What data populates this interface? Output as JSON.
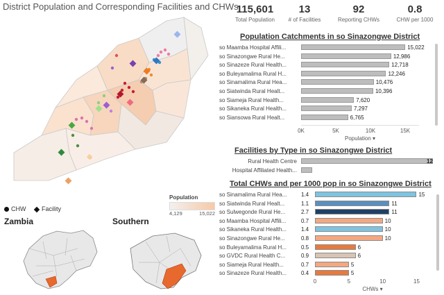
{
  "title": "District Population and Corresponding Facilities and CHWs",
  "kpis": [
    {
      "value": "115,601",
      "label": "Total Population"
    },
    {
      "value": "13",
      "label": "# of Facilities"
    },
    {
      "value": "92",
      "label": "Reporting CHWs"
    },
    {
      "value": "0.8",
      "label": "CHW per 1000"
    }
  ],
  "legend": {
    "chw": "CHW",
    "facility": "Facility",
    "population_title": "Population",
    "pop_min": "4,129",
    "pop_max": "15,022"
  },
  "mini_maps": {
    "left_label": "Zambia",
    "right_label": "Southern"
  },
  "population_chart": {
    "title": "Population Catchments in so Sinazongwe District",
    "axis_title": "Population",
    "ticks": [
      "0K",
      "5K",
      "10K",
      "15K"
    ],
    "max": 17000,
    "rows": [
      {
        "label": "so Maamba Hospital Affili...",
        "value": 15022,
        "text": "15,022"
      },
      {
        "label": "so Sinazongwe Rural He...",
        "value": 12986,
        "text": "12,986"
      },
      {
        "label": "so Sinazeze Rural Health...",
        "value": 12718,
        "text": "12,718"
      },
      {
        "label": "so Buleyamalima Rural H...",
        "value": 12246,
        "text": "12,246"
      },
      {
        "label": "so Sinamalima Rural Hea...",
        "value": 10476,
        "text": "10,476"
      },
      {
        "label": "so Siatwinda Rural Healt...",
        "value": 10396,
        "text": "10,396"
      },
      {
        "label": "so Siameja Rural Health...",
        "value": 7620,
        "text": "7,620"
      },
      {
        "label": "so Sikaneka Rural Health...",
        "value": 7297,
        "text": "7,297"
      },
      {
        "label": "so Siansowa Rural Healt...",
        "value": 6765,
        "text": "6,765"
      }
    ]
  },
  "facility_chart": {
    "title": "Facilities by Type in so Sinazongwe District",
    "max": 12,
    "rows": [
      {
        "label": "Rural Health Centre",
        "value": 12,
        "text": "12"
      },
      {
        "label": "Hospital Affiliated Health...",
        "value": 1,
        "text": ""
      }
    ]
  },
  "chw_chart": {
    "title": "Total CHWs and per 1000 pop in so Sinazongwe District",
    "axis_title": "CHWs",
    "ticks": [
      "0",
      "5",
      "10",
      "15"
    ],
    "max": 17,
    "rows": [
      {
        "label": "so Sinamalima Rural Hea...",
        "per1000": "1.4",
        "value": 15,
        "color": "#7ec4e0"
      },
      {
        "label": "so Siatwinda Rural Healt...",
        "per1000": "1.1",
        "value": 11,
        "color": "#5a8fc0"
      },
      {
        "label": "so Sulwegonde Rural He...",
        "per1000": "2.7",
        "value": 11,
        "color": "#1f3f66"
      },
      {
        "label": "so Maamba Hospital Affili...",
        "per1000": "0.7",
        "value": 10,
        "color": "#f4a882"
      },
      {
        "label": "so Sikaneka Rural Health...",
        "per1000": "1.4",
        "value": 10,
        "color": "#7ec4e0"
      },
      {
        "label": "so Sinazongwe Rural He...",
        "per1000": "0.8",
        "value": 10,
        "color": "#f4a882"
      },
      {
        "label": "so Buleyamalima Rural H...",
        "per1000": "0.5",
        "value": 6,
        "color": "#e87a3e"
      },
      {
        "label": "so GVDC Rural Health C...",
        "per1000": "0.9",
        "value": 6,
        "color": "#d9c4b4"
      },
      {
        "label": "so Siameja Rural Health...",
        "per1000": "0.7",
        "value": 5,
        "color": "#f4a882"
      },
      {
        "label": "so Sinazeze Rural Health...",
        "per1000": "0.4",
        "value": 5,
        "color": "#e87a3e"
      }
    ]
  },
  "colors": {
    "map_light": "#fbeee2",
    "map_mid": "#f7d6bd",
    "map_gray": "#ececec",
    "accent_orange": "#e8692e"
  }
}
